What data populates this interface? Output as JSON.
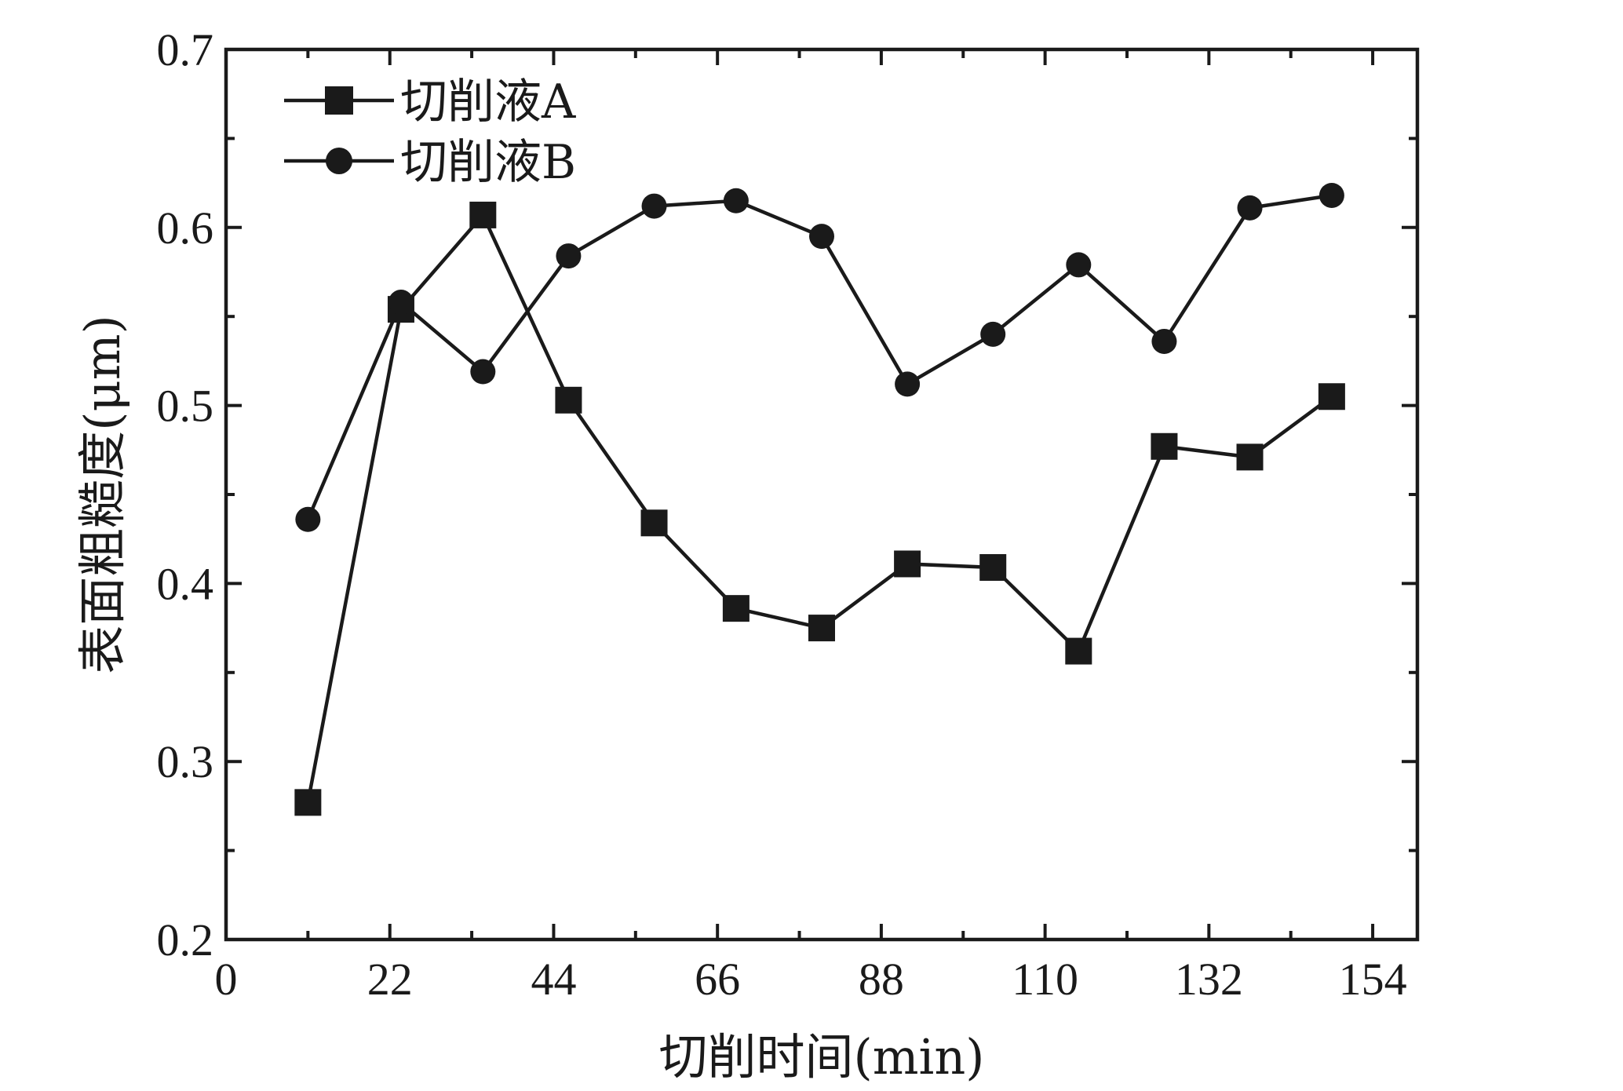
{
  "chart_data": {
    "type": "line",
    "xlabel": "切削时间(min)",
    "ylabel": "表面粗糙度(μm)",
    "xlim": [
      0,
      160
    ],
    "ylim": [
      0.2,
      0.7
    ],
    "x_ticks": [
      "0",
      "22",
      "44",
      "66",
      "88",
      "110",
      "132",
      "154"
    ],
    "y_ticks": [
      "0.2",
      "0.3",
      "0.4",
      "0.5",
      "0.6",
      "0.7"
    ],
    "legend_position": "top-left",
    "grid": false,
    "color": "#1a1a1a",
    "series": [
      {
        "name": "切削液A",
        "marker": "square",
        "x": [
          11,
          23.5,
          34.5,
          46,
          57.5,
          68.5,
          80,
          91.5,
          103,
          114.5,
          126,
          137.5,
          148.5
        ],
        "values": [
          0.277,
          0.554,
          0.607,
          0.503,
          0.434,
          0.386,
          0.375,
          0.411,
          0.409,
          0.362,
          0.477,
          0.471,
          0.505
        ]
      },
      {
        "name": "切削液B",
        "marker": "circle",
        "x": [
          11,
          23.5,
          34.5,
          46,
          57.5,
          68.5,
          80,
          91.5,
          103,
          114.5,
          126,
          137.5,
          148.5
        ],
        "values": [
          0.436,
          0.558,
          0.519,
          0.584,
          0.612,
          0.615,
          0.595,
          0.512,
          0.54,
          0.579,
          0.536,
          0.611,
          0.618
        ]
      }
    ]
  }
}
